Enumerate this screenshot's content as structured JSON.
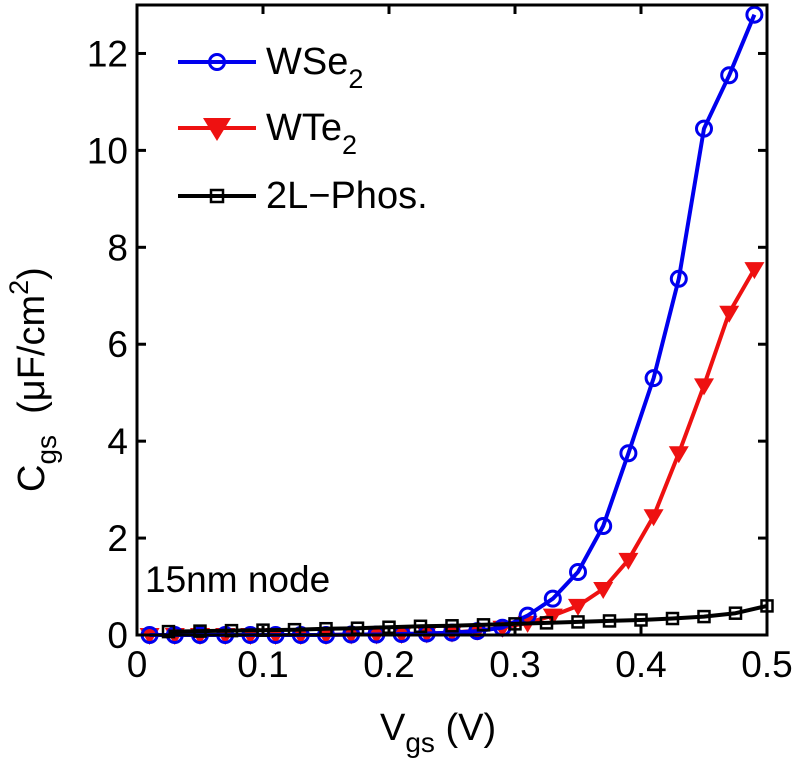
{
  "chart_data": {
    "type": "line",
    "title": "",
    "xlabel": {
      "main": "V",
      "sub": "gs",
      "unit": " (V)"
    },
    "ylabel": {
      "main": "C",
      "sub": "gs",
      "unit_pre": "  (μF/cm",
      "unit_sup": "2",
      "unit_post": ")"
    },
    "xlim": [
      0,
      0.5
    ],
    "ylim": [
      0,
      13
    ],
    "xticks": [
      0,
      0.1,
      0.2,
      0.3,
      0.4,
      0.5
    ],
    "xtick_labels": [
      "0",
      "0.1",
      "0.2",
      "0.3",
      "0.4",
      "0.5"
    ],
    "yticks": [
      0,
      2,
      4,
      6,
      8,
      10,
      12
    ],
    "ytick_labels": [
      "0",
      "2",
      "4",
      "6",
      "8",
      "10",
      "12"
    ],
    "grid": false,
    "legend_position": "top-left",
    "annotation": "15nm node",
    "series": [
      {
        "name": "WSe2",
        "legend_main": "WSe",
        "legend_sub": "2",
        "color": "#0000ee",
        "marker": "circle",
        "x": [
          0.01,
          0.03,
          0.05,
          0.07,
          0.09,
          0.11,
          0.13,
          0.15,
          0.17,
          0.19,
          0.21,
          0.23,
          0.25,
          0.27,
          0.29,
          0.31,
          0.33,
          0.35,
          0.37,
          0.39,
          0.41,
          0.43,
          0.45,
          0.47,
          0.49
        ],
        "values": [
          0.0,
          0.0,
          0.0,
          0.0,
          0.0,
          0.0,
          0.0,
          0.0,
          0.01,
          0.01,
          0.02,
          0.03,
          0.05,
          0.08,
          0.15,
          0.4,
          0.75,
          1.3,
          2.25,
          3.75,
          5.3,
          7.35,
          10.45,
          11.55,
          12.8
        ]
      },
      {
        "name": "WTe2",
        "legend_main": "WTe",
        "legend_sub": "2",
        "color": "#ee1111",
        "marker": "triangle-down",
        "x": [
          0.01,
          0.03,
          0.05,
          0.07,
          0.09,
          0.11,
          0.13,
          0.15,
          0.17,
          0.19,
          0.21,
          0.23,
          0.25,
          0.27,
          0.29,
          0.31,
          0.33,
          0.35,
          0.37,
          0.39,
          0.41,
          0.43,
          0.45,
          0.47,
          0.49
        ],
        "values": [
          0.0,
          0.0,
          0.0,
          0.0,
          0.0,
          0.0,
          0.0,
          0.0,
          0.01,
          0.01,
          0.02,
          0.03,
          0.05,
          0.09,
          0.15,
          0.25,
          0.4,
          0.6,
          0.95,
          1.55,
          2.45,
          3.75,
          5.15,
          6.65,
          7.55
        ]
      },
      {
        "name": "2L-Phos.",
        "legend_main": "2L−Phos.",
        "legend_sub": "",
        "color": "#000000",
        "marker": "square",
        "x": [
          0.025,
          0.05,
          0.075,
          0.1,
          0.125,
          0.15,
          0.175,
          0.2,
          0.225,
          0.25,
          0.275,
          0.3,
          0.325,
          0.35,
          0.375,
          0.4,
          0.425,
          0.45,
          0.475,
          0.5
        ],
        "values": [
          0.07,
          0.08,
          0.09,
          0.1,
          0.11,
          0.13,
          0.14,
          0.16,
          0.18,
          0.19,
          0.21,
          0.23,
          0.25,
          0.27,
          0.29,
          0.31,
          0.34,
          0.38,
          0.45,
          0.6
        ]
      }
    ]
  }
}
